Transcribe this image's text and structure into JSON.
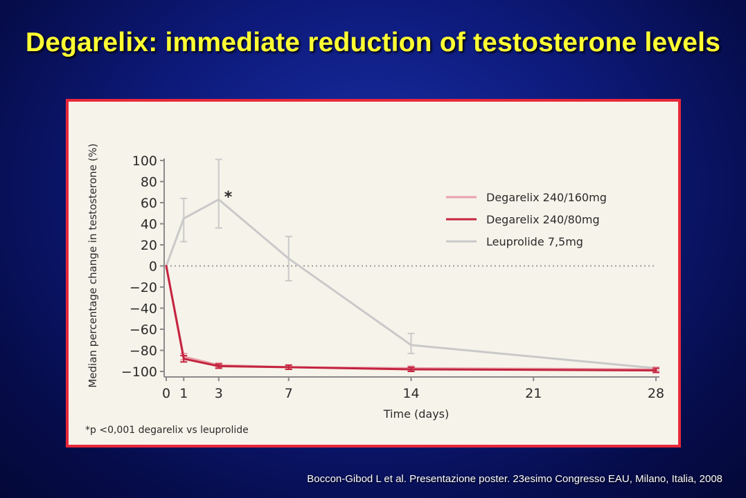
{
  "slide": {
    "title": "Degarelix: immediate reduction of testosterone levels",
    "citation": "Boccon-Gibod L et al. Presentazione poster. 23esimo Congresso EAU, Milano, Italia, 2008",
    "colors": {
      "background": "#0d1a7a",
      "title": "#ffff33",
      "frame_border": "#e8283a",
      "chart_bg": "#f6f3ea"
    }
  },
  "chart_data": {
    "type": "line",
    "xlabel": "Time (days)",
    "ylabel": "Median percentage change in testosterone (%)",
    "xlim": [
      0,
      28
    ],
    "ylim": [
      -100,
      100
    ],
    "xticks": [
      0,
      1,
      3,
      7,
      14,
      21,
      28
    ],
    "yticks": [
      100,
      80,
      60,
      40,
      20,
      0,
      -20,
      -40,
      -60,
      -80,
      -100
    ],
    "reference_line_y": 0,
    "annotation": {
      "text": "*",
      "x": 3,
      "y": 66
    },
    "footnote": "*p <0,001 degarelix vs leuprolide",
    "legend_position": "upper-right",
    "series": [
      {
        "name": "Degarelix 240/160mg",
        "color": "#e8a0aa",
        "x": [
          0,
          1,
          3,
          7,
          14,
          28
        ],
        "y": [
          0,
          -86,
          -94,
          -96,
          -97,
          -98
        ],
        "err_low": [
          0,
          -89,
          -96,
          -98,
          -99,
          -100
        ],
        "err_high": [
          0,
          -83,
          -92,
          -94,
          -95,
          -96
        ]
      },
      {
        "name": "Degarelix 240/80mg",
        "color": "#c4243f",
        "x": [
          0,
          1,
          3,
          7,
          14,
          28
        ],
        "y": [
          0,
          -88,
          -95,
          -96,
          -98,
          -99
        ],
        "err_low": [
          0,
          -91,
          -97,
          -98,
          -100,
          -101
        ],
        "err_high": [
          0,
          -85,
          -93,
          -94,
          -96,
          -97
        ]
      },
      {
        "name": "Leuprolide 7,5mg",
        "color": "#c9c9c9",
        "x": [
          0,
          1,
          3,
          7,
          14,
          28
        ],
        "y": [
          0,
          45,
          63,
          7,
          -75,
          -97
        ],
        "err_low": [
          0,
          23,
          36,
          -14,
          -83,
          -99
        ],
        "err_high": [
          0,
          64,
          101,
          28,
          -64,
          -96
        ]
      }
    ]
  }
}
